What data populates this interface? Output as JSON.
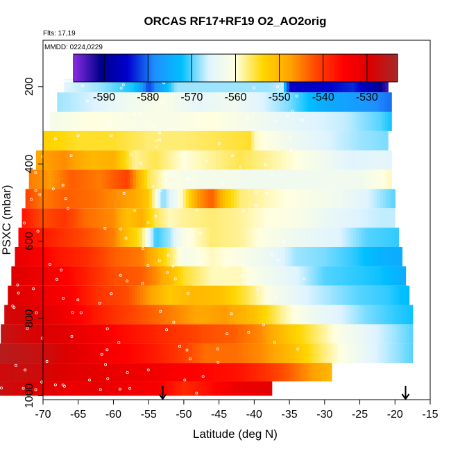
{
  "chart_data": {
    "type": "heatmap",
    "title": "ORCAS RF17+RF19 O2_AO2orig",
    "notes": {
      "flights": "Flts: 17,19",
      "dates": "MMDD: 0224,0229"
    },
    "xlabel": "Latitude (deg N)",
    "ylabel": "PSXC (mbar)",
    "xlim": [
      -70,
      -15
    ],
    "ylim": [
      1010,
      80
    ],
    "y_reversed": true,
    "xticks": [
      "-70",
      "-65",
      "-60",
      "-55",
      "-50",
      "-45",
      "-40",
      "-35",
      "-30",
      "-25",
      "-20",
      "-15"
    ],
    "yticks": [
      "200",
      "400",
      "600",
      "800",
      "1000"
    ],
    "colorbar": {
      "range": [
        -597,
        -523
      ],
      "ticks": [
        "-590",
        "-580",
        "-570",
        "-560",
        "-550",
        "-540",
        "-530"
      ],
      "colors": [
        "#8a2be2",
        "#00008b",
        "#0000cd",
        "#1e90ff",
        "#00bfff",
        "#e0f4ff",
        "#ffffe0",
        "#ffd700",
        "#ffa500",
        "#ff4500",
        "#ff0000",
        "#dc0000",
        "#a52a2a"
      ]
    },
    "rows": [
      {
        "p": 190,
        "lat0": -67.0,
        "lat1": -21.0,
        "nodes": [
          [
            -67,
            -566
          ],
          [
            -62,
            -568
          ],
          [
            -57,
            -572
          ],
          [
            -55,
            -582
          ],
          [
            -51,
            -568
          ],
          [
            -44,
            -568
          ],
          [
            -38,
            -568
          ],
          [
            -36,
            -567
          ],
          [
            -35,
            -585
          ],
          [
            -30,
            -585
          ],
          [
            -26,
            -583
          ],
          [
            -23,
            -588
          ],
          [
            -21,
            -594
          ]
        ]
      },
      {
        "p": 240,
        "lat0": -68.0,
        "lat1": -20.5,
        "nodes": [
          [
            -68,
            -568
          ],
          [
            -62,
            -566
          ],
          [
            -58,
            -563
          ],
          [
            -53,
            -561
          ],
          [
            -48,
            -565
          ],
          [
            -43,
            -563
          ],
          [
            -39,
            -566
          ],
          [
            -35,
            -569
          ],
          [
            -30,
            -575
          ],
          [
            -25,
            -577
          ],
          [
            -20.5,
            -580
          ]
        ]
      },
      {
        "p": 290,
        "lat0": -69.0,
        "lat1": -20.5,
        "nodes": [
          [
            -69,
            -562
          ],
          [
            -63,
            -560
          ],
          [
            -57,
            -561
          ],
          [
            -51,
            -561
          ],
          [
            -46,
            -560
          ],
          [
            -41,
            -562
          ],
          [
            -37,
            -564
          ],
          [
            -32,
            -566
          ],
          [
            -27,
            -567
          ],
          [
            -22,
            -570
          ],
          [
            -20.5,
            -572
          ]
        ]
      },
      {
        "p": 340,
        "lat0": -70.0,
        "lat1": -21.0,
        "nodes": [
          [
            -70,
            -553
          ],
          [
            -65,
            -555
          ],
          [
            -60,
            -555
          ],
          [
            -55,
            -557
          ],
          [
            -50,
            -557
          ],
          [
            -45,
            -556
          ],
          [
            -40.5,
            -555
          ],
          [
            -40,
            -559
          ],
          [
            -35,
            -563
          ],
          [
            -30,
            -566
          ],
          [
            -25,
            -568
          ],
          [
            -21,
            -569
          ]
        ]
      },
      {
        "p": 390,
        "lat0": -71.0,
        "lat1": -20.5,
        "nodes": [
          [
            -71,
            -548
          ],
          [
            -67,
            -546
          ],
          [
            -63,
            -550
          ],
          [
            -60,
            -549
          ],
          [
            -57,
            -558
          ],
          [
            -54,
            -556
          ],
          [
            -50,
            -560
          ],
          [
            -46,
            -558
          ],
          [
            -42,
            -556
          ],
          [
            -38,
            -558
          ],
          [
            -34,
            -560
          ],
          [
            -30,
            -563
          ],
          [
            -26,
            -566
          ],
          [
            -22,
            -565
          ],
          [
            -20.5,
            -566
          ]
        ]
      },
      {
        "p": 440,
        "lat0": -72.0,
        "lat1": -20.5,
        "nodes": [
          [
            -72,
            -545
          ],
          [
            -69,
            -547
          ],
          [
            -66,
            -543
          ],
          [
            -62,
            -545
          ],
          [
            -58,
            -541
          ],
          [
            -55,
            -556
          ],
          [
            -52,
            -561
          ],
          [
            -48,
            -562
          ],
          [
            -44,
            -562
          ],
          [
            -40,
            -563
          ],
          [
            -35,
            -563
          ],
          [
            -30,
            -563
          ],
          [
            -25,
            -563
          ],
          [
            -20.5,
            -559
          ]
        ]
      },
      {
        "p": 490,
        "lat0": -72.5,
        "lat1": -20.0,
        "nodes": [
          [
            -72.5,
            -541
          ],
          [
            -70,
            -545
          ],
          [
            -67,
            -543
          ],
          [
            -63,
            -544
          ],
          [
            -60,
            -546
          ],
          [
            -57,
            -548
          ],
          [
            -55,
            -552
          ],
          [
            -53,
            -569
          ],
          [
            -51,
            -563
          ],
          [
            -48,
            -547
          ],
          [
            -46,
            -543
          ],
          [
            -44,
            -552
          ],
          [
            -42,
            -557
          ],
          [
            -38,
            -559
          ],
          [
            -33,
            -561
          ],
          [
            -28,
            -563
          ],
          [
            -24,
            -566
          ],
          [
            -20,
            -570
          ]
        ]
      },
      {
        "p": 540,
        "lat0": -73.0,
        "lat1": -20.0,
        "nodes": [
          [
            -73,
            -537
          ],
          [
            -70,
            -542
          ],
          [
            -67,
            -540
          ],
          [
            -64,
            -544
          ],
          [
            -60,
            -546
          ],
          [
            -58,
            -551
          ],
          [
            -56,
            -549
          ],
          [
            -54,
            -556
          ],
          [
            -52,
            -559
          ],
          [
            -50,
            -558
          ],
          [
            -46,
            -557
          ],
          [
            -42,
            -558
          ],
          [
            -38,
            -560
          ],
          [
            -34,
            -561
          ],
          [
            -30,
            -564
          ],
          [
            -26,
            -566
          ],
          [
            -22,
            -567
          ],
          [
            -20,
            -567
          ]
        ]
      },
      {
        "p": 590,
        "lat0": -73.5,
        "lat1": -19.5,
        "nodes": [
          [
            -73.5,
            -535
          ],
          [
            -71,
            -537
          ],
          [
            -68,
            -539
          ],
          [
            -64,
            -542
          ],
          [
            -60,
            -545
          ],
          [
            -58,
            -551
          ],
          [
            -56,
            -556
          ],
          [
            -54,
            -571
          ],
          [
            -52,
            -568
          ],
          [
            -50,
            -561
          ],
          [
            -46,
            -557
          ],
          [
            -42,
            -558
          ],
          [
            -38,
            -561
          ],
          [
            -33,
            -564
          ],
          [
            -28,
            -566
          ],
          [
            -24,
            -570
          ],
          [
            -19.5,
            -571
          ]
        ]
      },
      {
        "p": 640,
        "lat0": -74.0,
        "lat1": -19.0,
        "nodes": [
          [
            -74,
            -531
          ],
          [
            -71,
            -534
          ],
          [
            -68,
            -537
          ],
          [
            -64,
            -539
          ],
          [
            -60,
            -543
          ],
          [
            -56,
            -545
          ],
          [
            -54,
            -550
          ],
          [
            -52,
            -556
          ],
          [
            -50,
            -562
          ],
          [
            -46,
            -559
          ],
          [
            -42,
            -561
          ],
          [
            -38,
            -564
          ],
          [
            -34,
            -568
          ],
          [
            -30,
            -569
          ],
          [
            -26,
            -571
          ],
          [
            -22,
            -574
          ],
          [
            -19,
            -575
          ]
        ]
      },
      {
        "p": 690,
        "lat0": -74.5,
        "lat1": -18.5,
        "nodes": [
          [
            -74.5,
            -529
          ],
          [
            -71,
            -532
          ],
          [
            -68,
            -534
          ],
          [
            -64,
            -538
          ],
          [
            -60,
            -542
          ],
          [
            -56,
            -543
          ],
          [
            -54,
            -546
          ],
          [
            -52,
            -550
          ],
          [
            -50,
            -555
          ],
          [
            -46,
            -559
          ],
          [
            -42,
            -559
          ],
          [
            -38,
            -563
          ],
          [
            -34,
            -566
          ],
          [
            -30,
            -570
          ],
          [
            -26,
            -571
          ],
          [
            -22,
            -572
          ],
          [
            -18.5,
            -575
          ]
        ]
      },
      {
        "p": 740,
        "lat0": -75.0,
        "lat1": -18.0,
        "nodes": [
          [
            -75,
            -529
          ],
          [
            -72,
            -531
          ],
          [
            -69,
            -533
          ],
          [
            -66,
            -535
          ],
          [
            -62,
            -540
          ],
          [
            -58,
            -542
          ],
          [
            -55,
            -547
          ],
          [
            -52,
            -552
          ],
          [
            -49,
            -550
          ],
          [
            -45,
            -551
          ],
          [
            -41,
            -556
          ],
          [
            -37,
            -562
          ],
          [
            -33,
            -566
          ],
          [
            -29,
            -568
          ],
          [
            -25,
            -570
          ],
          [
            -21,
            -571
          ],
          [
            -18,
            -573
          ]
        ]
      },
      {
        "p": 790,
        "lat0": -75.5,
        "lat1": -17.5,
        "nodes": [
          [
            -75.5,
            -528
          ],
          [
            -72,
            -529
          ],
          [
            -69,
            -531
          ],
          [
            -66,
            -534
          ],
          [
            -62,
            -538
          ],
          [
            -58,
            -541
          ],
          [
            -55,
            -543
          ],
          [
            -52,
            -545
          ],
          [
            -48,
            -548
          ],
          [
            -44,
            -547
          ],
          [
            -40,
            -551
          ],
          [
            -36,
            -558
          ],
          [
            -32,
            -563
          ],
          [
            -28,
            -566
          ],
          [
            -24,
            -569
          ],
          [
            -20,
            -571
          ],
          [
            -17.5,
            -572
          ]
        ]
      },
      {
        "p": 840,
        "lat0": -76.0,
        "lat1": -17.5,
        "nodes": [
          [
            -76,
            -526
          ],
          [
            -73,
            -528
          ],
          [
            -70,
            -529
          ],
          [
            -67,
            -530
          ],
          [
            -63,
            -533
          ],
          [
            -59,
            -536
          ],
          [
            -55,
            -538
          ],
          [
            -51,
            -540
          ],
          [
            -47,
            -542
          ],
          [
            -43,
            -543
          ],
          [
            -39,
            -546
          ],
          [
            -35,
            -552
          ],
          [
            -31,
            -557
          ],
          [
            -27,
            -562
          ],
          [
            -23,
            -566
          ],
          [
            -20,
            -568
          ],
          [
            -17.5,
            -570
          ]
        ]
      },
      {
        "p": 890,
        "lat0": -76.5,
        "lat1": -17.5,
        "nodes": [
          [
            -76.5,
            -525
          ],
          [
            -73,
            -526
          ],
          [
            -70,
            -527
          ],
          [
            -67,
            -529
          ],
          [
            -63,
            -532
          ],
          [
            -59,
            -535
          ],
          [
            -55,
            -537
          ],
          [
            -51,
            -540
          ],
          [
            -47,
            -544
          ],
          [
            -43,
            -544
          ],
          [
            -39,
            -546
          ],
          [
            -35,
            -550
          ],
          [
            -31,
            -556
          ],
          [
            -27,
            -561
          ],
          [
            -23,
            -566
          ],
          [
            -20,
            -568
          ],
          [
            -17.5,
            -570
          ]
        ]
      },
      {
        "p": 940,
        "lat0": -77.0,
        "lat1": -29.0,
        "nodes": [
          [
            -77,
            -528
          ],
          [
            -73,
            -527
          ],
          [
            -70,
            -528
          ],
          [
            -66,
            -530
          ],
          [
            -62,
            -531
          ],
          [
            -58,
            -532
          ],
          [
            -54,
            -533
          ],
          [
            -50,
            -535
          ],
          [
            -46,
            -536
          ],
          [
            -42,
            -537
          ],
          [
            -38,
            -540
          ],
          [
            -35,
            -543
          ],
          [
            -32,
            -547
          ],
          [
            -29,
            -550
          ]
        ]
      },
      {
        "p": 985,
        "lat0": -77.5,
        "lat1": -37.5,
        "nodes": [
          [
            -77.5,
            -526
          ],
          [
            -74,
            -528
          ],
          [
            -70,
            -530
          ],
          [
            -66,
            -532
          ],
          [
            -62,
            -531
          ],
          [
            -58,
            -533
          ],
          [
            -54,
            -534
          ],
          [
            -50,
            -539
          ],
          [
            -46,
            -536
          ],
          [
            -42,
            -532
          ],
          [
            -37.5,
            -531
          ]
        ]
      }
    ],
    "markers": [
      {
        "lat": -53.0,
        "type": "arrow-down"
      },
      {
        "lat": -18.5,
        "type": "arrow-down"
      }
    ]
  }
}
